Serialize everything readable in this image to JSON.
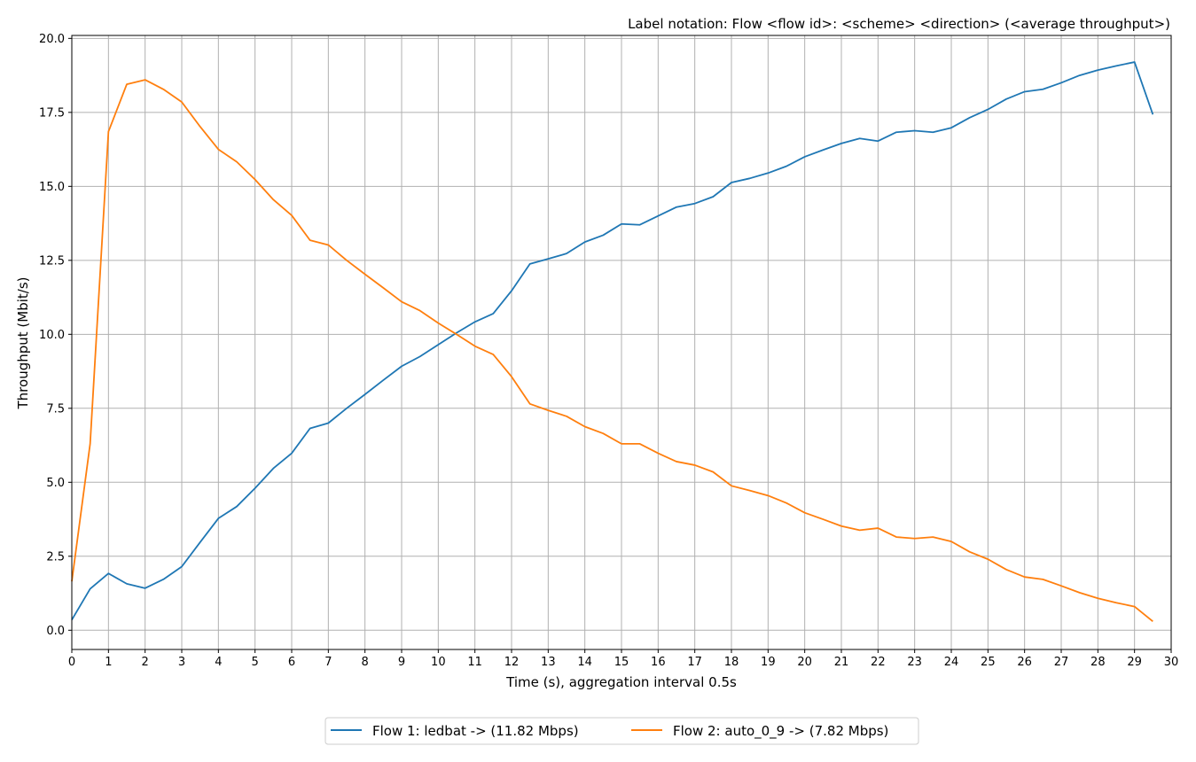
{
  "chart_data": {
    "type": "line",
    "title": "Label notation: Flow <flow id>: <scheme> <direction> (<average throughput>)",
    "xlabel": "Time (s), aggregation interval 0.5s",
    "ylabel": "Throughput (Mbit/s)",
    "xlim": [
      0,
      30
    ],
    "ylim": [
      -0.65,
      20.1
    ],
    "xticks": [
      0,
      1,
      2,
      3,
      4,
      5,
      6,
      7,
      8,
      9,
      10,
      11,
      12,
      13,
      14,
      15,
      16,
      17,
      18,
      19,
      20,
      21,
      22,
      23,
      24,
      25,
      26,
      27,
      28,
      29,
      30
    ],
    "yticks": [
      0.0,
      2.5,
      5.0,
      7.5,
      10.0,
      12.5,
      15.0,
      17.5,
      20.0
    ],
    "grid": true,
    "legend_position": "bottom-center",
    "x": [
      0,
      0.5,
      1,
      1.5,
      2,
      2.5,
      3,
      3.5,
      4,
      4.5,
      5,
      5.5,
      6,
      6.5,
      7,
      7.5,
      8,
      8.5,
      9,
      9.5,
      10,
      10.5,
      11,
      11.5,
      12,
      12.5,
      13,
      13.5,
      14,
      14.5,
      15,
      15.5,
      16,
      16.5,
      17,
      17.5,
      18,
      18.5,
      19,
      19.5,
      20,
      20.5,
      21,
      21.5,
      22,
      22.5,
      23,
      23.5,
      24,
      24.5,
      25,
      25.5,
      26,
      26.5,
      27,
      27.5,
      28,
      28.5,
      29,
      29.5
    ],
    "series": [
      {
        "name": "Flow 1: ledbat -> (11.82 Mbps)",
        "color": "#1f77b4",
        "values": [
          0.35,
          1.4,
          1.92,
          1.57,
          1.42,
          1.72,
          2.15,
          2.97,
          3.78,
          4.18,
          4.8,
          5.47,
          5.98,
          6.82,
          7.0,
          7.5,
          7.97,
          8.45,
          8.92,
          9.25,
          9.65,
          10.05,
          10.42,
          10.7,
          11.47,
          12.38,
          12.55,
          12.73,
          13.12,
          13.35,
          13.73,
          13.7,
          14.0,
          14.3,
          14.42,
          14.65,
          15.13,
          15.27,
          15.45,
          15.68,
          16.0,
          16.23,
          16.45,
          16.62,
          16.53,
          16.83,
          16.88,
          16.83,
          16.98,
          17.32,
          17.6,
          17.95,
          18.2,
          18.28,
          18.5,
          18.75,
          18.93,
          19.07,
          19.2,
          17.43
        ]
      },
      {
        "name": "Flow 2: auto_0_9 -> (7.82 Mbps)",
        "color": "#ff7f0e",
        "values": [
          1.65,
          6.3,
          16.85,
          18.45,
          18.6,
          18.28,
          17.85,
          17.02,
          16.25,
          15.83,
          15.23,
          14.55,
          14.02,
          13.18,
          13.02,
          12.5,
          12.03,
          11.57,
          11.1,
          10.8,
          10.38,
          10.0,
          9.6,
          9.32,
          8.57,
          7.65,
          7.43,
          7.23,
          6.88,
          6.65,
          6.3,
          6.3,
          5.98,
          5.7,
          5.58,
          5.35,
          4.88,
          4.72,
          4.55,
          4.3,
          3.97,
          3.75,
          3.52,
          3.38,
          3.45,
          3.15,
          3.1,
          3.15,
          3.0,
          2.65,
          2.4,
          2.05,
          1.8,
          1.72,
          1.5,
          1.27,
          1.08,
          0.93,
          0.8,
          0.3
        ]
      }
    ]
  }
}
